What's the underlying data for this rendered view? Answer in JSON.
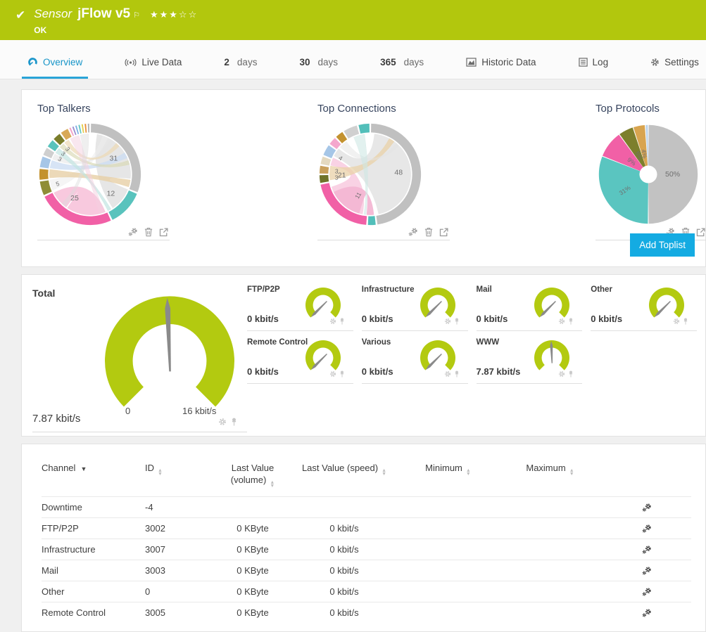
{
  "colors": {
    "brand_green": "#b2c70d",
    "accent_blue": "#1b9cd2",
    "button_blue": "#14abe2",
    "gauge_green": "#b3ca10",
    "needle_gray": "#8a8a8a"
  },
  "icons": {
    "toplist_actions": [
      "settings-icon",
      "delete-icon",
      "open-external-icon"
    ],
    "gauge_actions": [
      "settings-icon",
      "pin-icon"
    ],
    "table_row_action": "settings-icon"
  },
  "header": {
    "check_icon": "✔",
    "type_label": "Sensor",
    "name": "jFlow v5",
    "flag_icon": "⚐",
    "stars": "★★★☆☆",
    "status": "OK"
  },
  "tabs": [
    {
      "label": "Overview",
      "icon": "gauge-icon",
      "active": true
    },
    {
      "label": "Live Data",
      "icon": "broadcast-icon"
    },
    {
      "number": "2",
      "label": "days"
    },
    {
      "number": "30",
      "label": "days"
    },
    {
      "number": "365",
      "label": "days"
    },
    {
      "label": "Historic Data",
      "icon": "area-chart-icon"
    },
    {
      "label": "Log",
      "icon": "log-icon"
    },
    {
      "label": "Settings",
      "icon": "gear-icon"
    }
  ],
  "toplists": {
    "add_button_label": "Add Toplist"
  },
  "chart_data": [
    {
      "type": "chord",
      "title": "Top Talkers",
      "values_unit": "percent",
      "segments": [
        {
          "value": 31,
          "color": "#c0c0c0"
        },
        {
          "value": 12,
          "color": "#59c3bd"
        },
        {
          "value": 25,
          "color": "#f160a6",
          "label_angle": 213
        },
        {
          "value": 5,
          "color": "#8f8d37"
        },
        {
          "value": 4,
          "color": "#c3922f",
          "label": ""
        },
        {
          "value": 4,
          "color": "#a6c6e7",
          "label": ""
        },
        {
          "value": 3,
          "color": "#cfcfcf"
        },
        {
          "value": 3,
          "color": "#59c3bd"
        },
        {
          "value": 3,
          "color": "#7a7d2b"
        },
        {
          "value": 3,
          "color": "#d8a957",
          "label": ""
        },
        {
          "value": 1,
          "color": "#f2a0c8",
          "label": ""
        },
        {
          "value": 1,
          "color": "#9b8fd0",
          "label": ""
        },
        {
          "value": 1,
          "color": "#7fb2e5",
          "label": ""
        },
        {
          "value": 1,
          "color": "#67c8c3",
          "label": ""
        },
        {
          "value": 1,
          "color": "#e3cf4e",
          "label": ""
        },
        {
          "value": 1,
          "color": "#e88f3a",
          "label": ""
        },
        {
          "value": 1,
          "color": "#b0b0b0",
          "label": ""
        }
      ],
      "ribbons": [
        {
          "from": [
            10,
            96
          ],
          "to": [
            112,
            146
          ],
          "color": "#e0e0e0",
          "opacity": 0.8
        },
        {
          "from": [
            158,
            214
          ],
          "to": [
            216,
            243
          ],
          "color": "#f7c3da",
          "opacity": 0.9
        },
        {
          "from": [
            247,
            262
          ],
          "to": [
            18,
            26
          ],
          "color": "#ededed",
          "opacity": 0.55
        },
        {
          "from": [
            265,
            277
          ],
          "to": [
            98,
            108
          ],
          "color": "#e7d0a6",
          "opacity": 0.8
        },
        {
          "from": [
            279,
            290
          ],
          "to": [
            58,
            66
          ],
          "color": "#cdddf2",
          "opacity": 0.8
        },
        {
          "from": [
            292,
            300
          ],
          "to": [
            30,
            36
          ],
          "color": "#e4e4e4",
          "opacity": 0.55
        },
        {
          "from": [
            302,
            310
          ],
          "to": [
            149,
            154
          ],
          "color": "#c2e4e1",
          "opacity": 0.7
        },
        {
          "from": [
            312,
            319
          ],
          "to": [
            70,
            76
          ],
          "color": "#d8d8b4",
          "opacity": 0.65
        },
        {
          "from": [
            321,
            328
          ],
          "to": [
            40,
            46
          ],
          "color": "#ecd9b4",
          "opacity": 0.7
        },
        {
          "from": [
            331,
            344
          ],
          "to": [
            160,
            167
          ],
          "color": "#f4cfe0",
          "opacity": 0.5
        },
        {
          "from": [
            346,
            358
          ],
          "to": [
            218,
            224
          ],
          "color": "#dcdcdc",
          "opacity": 0.45
        }
      ]
    },
    {
      "type": "chord",
      "title": "Top Connections",
      "values_unit": "percent",
      "segments": [
        {
          "value": 48,
          "color": "#c0c0c0"
        },
        {
          "value": 3,
          "color": "#52bfba",
          "label": ""
        },
        {
          "value": 21,
          "color": "#f160a6",
          "label_angle": 268
        },
        {
          "value": 3,
          "color": "#6f732a"
        },
        {
          "value": 3,
          "color": "#c9a05c"
        },
        {
          "value": 3,
          "color": "#e4d9c0",
          "label": ""
        },
        {
          "value": 4,
          "color": "#a6c6e7"
        },
        {
          "value": 3,
          "color": "#f4a7cd",
          "label": ""
        },
        {
          "value": 3,
          "color": "#c3922f",
          "label": ""
        },
        {
          "value": 5,
          "color": "#d0d0d0",
          "label": ""
        },
        {
          "value": 4,
          "color": "#52bfba",
          "label": ""
        }
      ],
      "ribbons": [
        {
          "from": [
            6,
            168
          ],
          "to": [
            297,
            309
          ],
          "color": "#e4e4e4",
          "opacity": 0.9
        },
        {
          "from": [
            191,
            252
          ],
          "to": [
            283,
            294
          ],
          "color": "#f8cde1",
          "opacity": 0.9
        },
        {
          "from": [
            196,
            244
          ],
          "to": [
            175,
            185
          ],
          "color": "#f3b6d3",
          "opacity": 0.95
        },
        {
          "from": [
            262,
            282
          ],
          "to": [
            28,
            36
          ],
          "color": "#ead2a8",
          "opacity": 0.75
        },
        {
          "from": [
            312,
            324
          ],
          "to": [
            40,
            45
          ],
          "color": "#e4e4e4",
          "opacity": 0.5
        },
        {
          "from": [
            336,
            352
          ],
          "to": [
            186,
            189
          ],
          "color": "#cfe7e4",
          "opacity": 0.6
        }
      ],
      "inner_labels": [
        {
          "text": "11",
          "angle": 210,
          "r": 36
        }
      ]
    },
    {
      "type": "donut",
      "title": "Top Protocols",
      "segments": [
        {
          "label": "50%",
          "value": 50,
          "color": "#c2c2c2"
        },
        {
          "label": "31%",
          "value": 31,
          "color": "#5ac5c0"
        },
        {
          "label": "9%",
          "value": 9,
          "color": "#f160a6"
        },
        {
          "label": "5%",
          "value": 5,
          "color": "#7d7f2c"
        },
        {
          "label": "4%",
          "value": 4,
          "color": "#d8a44f"
        },
        {
          "label": "",
          "value": 1,
          "color": "#bcd3ea"
        }
      ]
    },
    {
      "type": "gauge",
      "title": "Total",
      "value_label": "7.87 kbit/s",
      "min_label": "0",
      "max_label": "16 kbit/s",
      "value_kbit_s": 7.87,
      "min": 0,
      "max": 16,
      "fraction": 0.492
    },
    {
      "type": "gauge-set",
      "unit": "kbit/s",
      "channels": [
        {
          "label": "FTP/P2P",
          "value_label": "0 kbit/s",
          "fraction": 0
        },
        {
          "label": "Infrastructure",
          "value_label": "0 kbit/s",
          "fraction": 0
        },
        {
          "label": "Mail",
          "value_label": "0 kbit/s",
          "fraction": 0
        },
        {
          "label": "Other",
          "value_label": "0 kbit/s",
          "fraction": 0
        },
        {
          "label": "Remote Control",
          "value_label": "0 kbit/s",
          "fraction": 0
        },
        {
          "label": "Various",
          "value_label": "0 kbit/s",
          "fraction": 0
        },
        {
          "label": "WWW",
          "value_label": "7.87 kbit/s",
          "fraction": 0.492
        }
      ]
    }
  ],
  "table": {
    "columns": [
      {
        "label": "Channel",
        "sorted": "desc"
      },
      {
        "label": "ID"
      },
      {
        "label": "Last Value (volume)"
      },
      {
        "label": "Last Value (speed)"
      },
      {
        "label": "Minimum"
      },
      {
        "label": "Maximum"
      }
    ],
    "rows": [
      {
        "channel": "Downtime",
        "id": "-4",
        "volume": "",
        "speed": "",
        "min": "",
        "max": ""
      },
      {
        "channel": "FTP/P2P",
        "id": "3002",
        "volume": "0 KByte",
        "speed": "0 kbit/s",
        "min": "",
        "max": ""
      },
      {
        "channel": "Infrastructure",
        "id": "3007",
        "volume": "0 KByte",
        "speed": "0 kbit/s",
        "min": "",
        "max": ""
      },
      {
        "channel": "Mail",
        "id": "3003",
        "volume": "0 KByte",
        "speed": "0 kbit/s",
        "min": "",
        "max": ""
      },
      {
        "channel": "Other",
        "id": "0",
        "volume": "0 KByte",
        "speed": "0 kbit/s",
        "min": "",
        "max": ""
      },
      {
        "channel": "Remote Control",
        "id": "3005",
        "volume": "0 KByte",
        "speed": "0 kbit/s",
        "min": "",
        "max": ""
      }
    ]
  }
}
